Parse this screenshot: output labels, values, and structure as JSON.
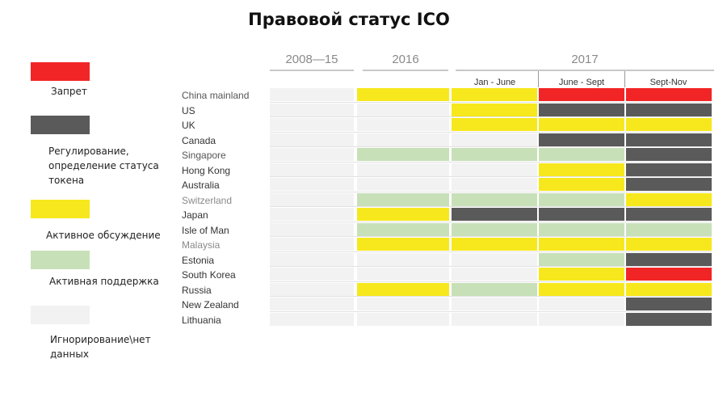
{
  "title": "Правовой статус ICO",
  "legend": [
    {
      "key": "ban",
      "label_lines": [
        "Запрет"
      ],
      "color": "#f22526"
    },
    {
      "key": "regulation",
      "label_lines": [
        "Регулирование,",
        "определение статуса",
        "токена"
      ],
      "color": "#5a5a5a"
    },
    {
      "key": "discussion",
      "label_lines": [
        "Активное обсуждение"
      ],
      "color": "#f6e81d"
    },
    {
      "key": "support",
      "label_lines": [
        "Активная поддержка"
      ],
      "color": "#c8e0b8"
    },
    {
      "key": "ignore",
      "label_lines": [
        "Игнорирование\\нет",
        "данных"
      ],
      "color": "#f2f2f2"
    }
  ],
  "header": {
    "periods": [
      "2008—15",
      "2016",
      "2017"
    ],
    "subperiods_2017": [
      "Jan - June",
      "June - Sept",
      "Sept-Nov"
    ]
  },
  "chart_data": {
    "type": "table",
    "columns": [
      "2008—15",
      "2016",
      "2017 Jan - June",
      "2017 June - Sept",
      "2017 Sept-Nov"
    ],
    "rows": [
      {
        "country": "China mainland",
        "label_style": "muted",
        "statuses": [
          "ignore",
          "discussion",
          "discussion",
          "ban",
          "ban"
        ]
      },
      {
        "country": "US",
        "label_style": "dark",
        "statuses": [
          "ignore",
          "ignore",
          "discussion",
          "regulation",
          "regulation"
        ]
      },
      {
        "country": "UK",
        "label_style": "dark",
        "statuses": [
          "ignore",
          "ignore",
          "discussion",
          "discussion",
          "discussion"
        ]
      },
      {
        "country": "Canada",
        "label_style": "dark",
        "statuses": [
          "ignore",
          "ignore",
          "ignore",
          "regulation",
          "regulation"
        ]
      },
      {
        "country": "Singapore",
        "label_style": "muted",
        "statuses": [
          "ignore",
          "support",
          "support",
          "support",
          "regulation"
        ]
      },
      {
        "country": "Hong Kong",
        "label_style": "dark",
        "statuses": [
          "ignore",
          "ignore",
          "ignore",
          "discussion",
          "regulation"
        ]
      },
      {
        "country": "Australia",
        "label_style": "dark",
        "statuses": [
          "ignore",
          "ignore",
          "ignore",
          "discussion",
          "regulation"
        ]
      },
      {
        "country": "Switzerland",
        "label_style": "light",
        "statuses": [
          "ignore",
          "support",
          "support",
          "support",
          "discussion"
        ]
      },
      {
        "country": "Japan",
        "label_style": "dark",
        "statuses": [
          "ignore",
          "discussion",
          "regulation",
          "regulation",
          "regulation"
        ]
      },
      {
        "country": "Isle of Man",
        "label_style": "dark",
        "statuses": [
          "ignore",
          "support",
          "support",
          "support",
          "support"
        ]
      },
      {
        "country": "Malaysia",
        "label_style": "light",
        "statuses": [
          "ignore",
          "discussion",
          "discussion",
          "discussion",
          "discussion"
        ]
      },
      {
        "country": "Estonia",
        "label_style": "dark",
        "statuses": [
          "ignore",
          "ignore",
          "ignore",
          "support",
          "regulation"
        ]
      },
      {
        "country": "South Korea",
        "label_style": "dark",
        "statuses": [
          "ignore",
          "ignore",
          "ignore",
          "discussion",
          "ban"
        ]
      },
      {
        "country": "Russia",
        "label_style": "dark",
        "statuses": [
          "ignore",
          "discussion",
          "support",
          "discussion",
          "discussion"
        ]
      },
      {
        "country": "New Zealand",
        "label_style": "dark",
        "statuses": [
          "ignore",
          "ignore",
          "ignore",
          "ignore",
          "regulation"
        ]
      },
      {
        "country": "Lithuania",
        "label_style": "dark",
        "statuses": [
          "ignore",
          "ignore",
          "ignore",
          "ignore",
          "regulation"
        ]
      }
    ]
  },
  "label_colors": {
    "dark": "#333333",
    "muted": "#555555",
    "light": "#8a8a8a"
  }
}
